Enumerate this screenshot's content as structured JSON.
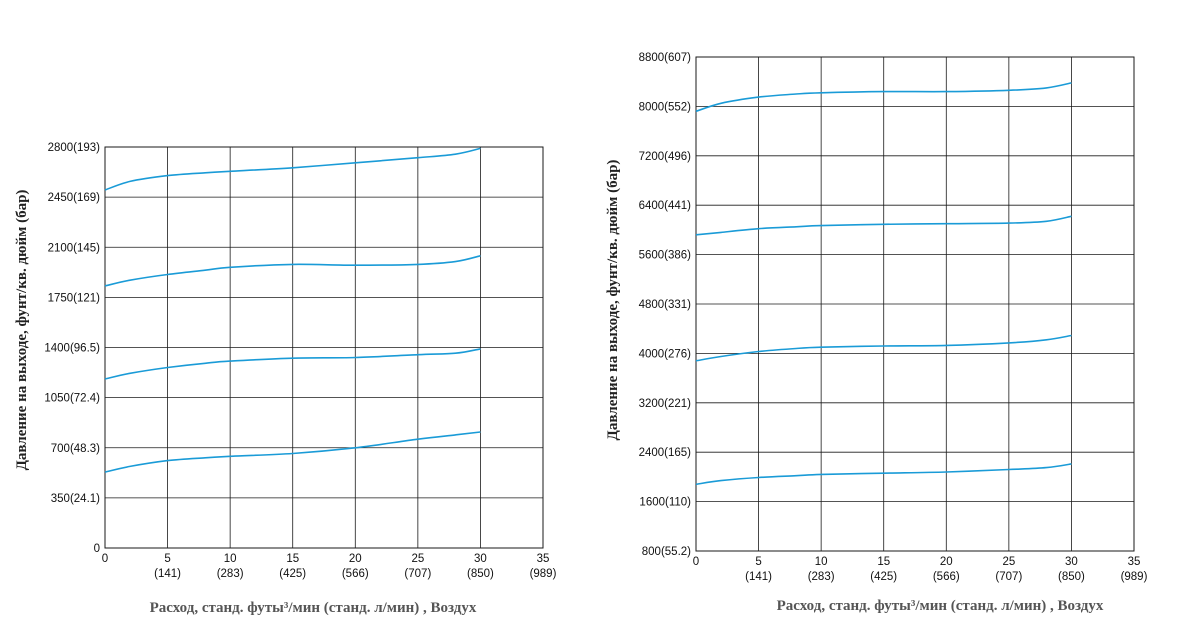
{
  "colors": {
    "curve": "#1a9bd7",
    "grid": "#1a1a1a"
  },
  "chart_data": [
    {
      "type": "line",
      "ylabel": "Давление на выходе, фунт/кв. дюйм (бар)",
      "xlabel": "Расход, станд. футы³/мин (станд. л/мин) , Воздух",
      "xlim": [
        0,
        35
      ],
      "ylim": [
        0,
        2800
      ],
      "grid": true,
      "x_ticks": [
        {
          "value": 0,
          "label": "0",
          "sub": ""
        },
        {
          "value": 5,
          "label": "5",
          "sub": "(141)"
        },
        {
          "value": 10,
          "label": "10",
          "sub": "(283)"
        },
        {
          "value": 15,
          "label": "15",
          "sub": "(425)"
        },
        {
          "value": 20,
          "label": "20",
          "sub": "(566)"
        },
        {
          "value": 25,
          "label": "25",
          "sub": "(707)"
        },
        {
          "value": 30,
          "label": "30",
          "sub": "(850)"
        },
        {
          "value": 35,
          "label": "35",
          "sub": "(989)"
        }
      ],
      "y_ticks": [
        {
          "value": 0,
          "label": "0"
        },
        {
          "value": 350,
          "label": "350(24.1)"
        },
        {
          "value": 700,
          "label": "700(48.3)"
        },
        {
          "value": 1050,
          "label": "1050(72.4)"
        },
        {
          "value": 1400,
          "label": "1400(96.5)"
        },
        {
          "value": 1750,
          "label": "1750(121)"
        },
        {
          "value": 2100,
          "label": "2100(145)"
        },
        {
          "value": 2450,
          "label": "2450(169)"
        },
        {
          "value": 2800,
          "label": "2800(193)"
        }
      ],
      "series": [
        {
          "x": [
            0,
            2,
            5,
            8,
            10,
            15,
            20,
            25,
            28,
            30
          ],
          "y": [
            2500,
            2560,
            2600,
            2620,
            2630,
            2655,
            2690,
            2725,
            2750,
            2790
          ]
        },
        {
          "x": [
            0,
            2,
            5,
            8,
            10,
            15,
            20,
            25,
            28,
            30
          ],
          "y": [
            1830,
            1870,
            1910,
            1940,
            1960,
            1980,
            1975,
            1980,
            2000,
            2040
          ]
        },
        {
          "x": [
            0,
            2,
            5,
            8,
            10,
            15,
            20,
            25,
            28,
            30
          ],
          "y": [
            1180,
            1220,
            1260,
            1290,
            1305,
            1325,
            1330,
            1350,
            1360,
            1390
          ]
        },
        {
          "x": [
            0,
            2,
            5,
            8,
            10,
            15,
            20,
            25,
            28,
            30
          ],
          "y": [
            530,
            570,
            610,
            630,
            640,
            660,
            700,
            760,
            790,
            810
          ]
        }
      ]
    },
    {
      "type": "line",
      "ylabel": "Давление на выходе, фунт/кв. дюйм (бар)",
      "xlabel": "Расход, станд. футы³/мин (станд. л/мин) , Воздух",
      "xlim": [
        0,
        35
      ],
      "ylim": [
        800,
        8800
      ],
      "grid": true,
      "x_ticks": [
        {
          "value": 0,
          "label": "0",
          "sub": ""
        },
        {
          "value": 5,
          "label": "5",
          "sub": "(141)"
        },
        {
          "value": 10,
          "label": "10",
          "sub": "(283)"
        },
        {
          "value": 15,
          "label": "15",
          "sub": "(425)"
        },
        {
          "value": 20,
          "label": "20",
          "sub": "(566)"
        },
        {
          "value": 25,
          "label": "25",
          "sub": "(707)"
        },
        {
          "value": 30,
          "label": "30",
          "sub": "(850)"
        },
        {
          "value": 35,
          "label": "35",
          "sub": "(989)"
        }
      ],
      "y_ticks": [
        {
          "value": 800,
          "label": "800(55.2)"
        },
        {
          "value": 1600,
          "label": "1600(110)"
        },
        {
          "value": 2400,
          "label": "2400(165)"
        },
        {
          "value": 3200,
          "label": "3200(221)"
        },
        {
          "value": 4000,
          "label": "4000(276)"
        },
        {
          "value": 4800,
          "label": "4800(331)"
        },
        {
          "value": 5600,
          "label": "5600(386)"
        },
        {
          "value": 6400,
          "label": "6400(441)"
        },
        {
          "value": 7200,
          "label": "7200(496)"
        },
        {
          "value": 8000,
          "label": "8000(552)"
        },
        {
          "value": 8800,
          "label": "8800(607)"
        }
      ],
      "series": [
        {
          "x": [
            0,
            2,
            5,
            8,
            10,
            15,
            20,
            25,
            28,
            30
          ],
          "y": [
            7920,
            8050,
            8150,
            8200,
            8220,
            8240,
            8240,
            8260,
            8300,
            8380
          ]
        },
        {
          "x": [
            0,
            2,
            5,
            8,
            10,
            15,
            20,
            25,
            28,
            30
          ],
          "y": [
            5920,
            5960,
            6020,
            6050,
            6070,
            6090,
            6100,
            6110,
            6140,
            6220
          ]
        },
        {
          "x": [
            0,
            2,
            5,
            8,
            10,
            15,
            20,
            25,
            28,
            30
          ],
          "y": [
            3880,
            3950,
            4030,
            4080,
            4100,
            4120,
            4130,
            4170,
            4220,
            4290
          ]
        },
        {
          "x": [
            0,
            2,
            5,
            8,
            10,
            15,
            20,
            25,
            28,
            30
          ],
          "y": [
            1880,
            1940,
            1990,
            2020,
            2040,
            2060,
            2080,
            2120,
            2150,
            2210
          ]
        }
      ]
    }
  ]
}
